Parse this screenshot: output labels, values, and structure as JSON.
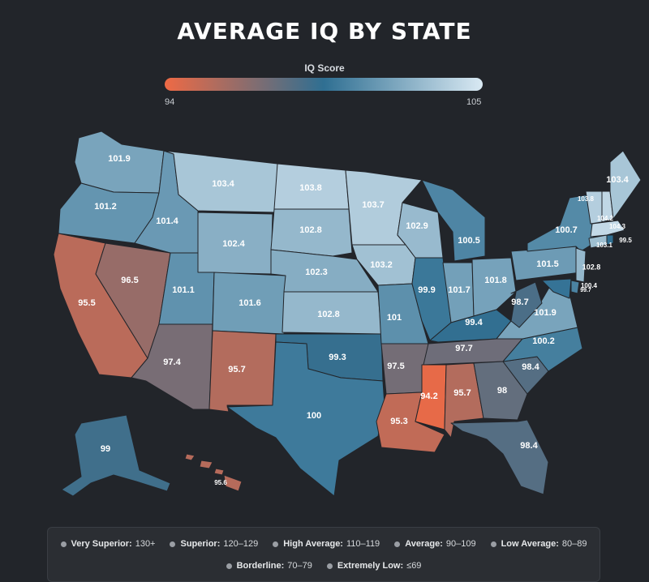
{
  "title": "AVERAGE IQ BY STATE",
  "legend": {
    "title": "IQ Score",
    "min_label": "94",
    "max_label": "105",
    "min": 94,
    "max": 105,
    "low_color": "#ee6a45",
    "mid_color": "#2f6f92",
    "high_color": "#d9e9f3"
  },
  "states": [
    {
      "id": "WA",
      "value": 101.9,
      "label": "101.9"
    },
    {
      "id": "OR",
      "value": 101.2,
      "label": "101.2"
    },
    {
      "id": "CA",
      "value": 95.5,
      "label": "95.5"
    },
    {
      "id": "NV",
      "value": 96.5,
      "label": "96.5"
    },
    {
      "id": "ID",
      "value": 101.4,
      "label": "101.4"
    },
    {
      "id": "MT",
      "value": 103.4,
      "label": "103.4"
    },
    {
      "id": "WY",
      "value": 102.4,
      "label": "102.4"
    },
    {
      "id": "UT",
      "value": 101.1,
      "label": "101.1"
    },
    {
      "id": "AZ",
      "value": 97.4,
      "label": "97.4"
    },
    {
      "id": "CO",
      "value": 101.6,
      "label": "101.6"
    },
    {
      "id": "NM",
      "value": 95.7,
      "label": "95.7"
    },
    {
      "id": "ND",
      "value": 103.8,
      "label": "103.8"
    },
    {
      "id": "SD",
      "value": 102.8,
      "label": "102.8"
    },
    {
      "id": "NE",
      "value": 102.3,
      "label": "102.3"
    },
    {
      "id": "KS",
      "value": 102.8,
      "label": "102.8"
    },
    {
      "id": "OK",
      "value": 99.3,
      "label": "99.3"
    },
    {
      "id": "TX",
      "value": 100,
      "label": "100"
    },
    {
      "id": "MN",
      "value": 103.7,
      "label": "103.7"
    },
    {
      "id": "IA",
      "value": 103.2,
      "label": "103.2"
    },
    {
      "id": "MO",
      "value": 101,
      "label": "101"
    },
    {
      "id": "AR",
      "value": 97.5,
      "label": "97.5"
    },
    {
      "id": "LA",
      "value": 95.3,
      "label": "95.3"
    },
    {
      "id": "WI",
      "value": 102.9,
      "label": "102.9"
    },
    {
      "id": "IL",
      "value": 99.9,
      "label": "99.9"
    },
    {
      "id": "MI",
      "value": 100.5,
      "label": "100.5"
    },
    {
      "id": "IN",
      "value": 101.7,
      "label": "101.7"
    },
    {
      "id": "OH",
      "value": 101.8,
      "label": "101.8"
    },
    {
      "id": "KY",
      "value": 99.4,
      "label": "99.4"
    },
    {
      "id": "TN",
      "value": 97.7,
      "label": "97.7"
    },
    {
      "id": "MS",
      "value": 94.2,
      "label": "94.2"
    },
    {
      "id": "AL",
      "value": 95.7,
      "label": "95.7"
    },
    {
      "id": "GA",
      "value": 98,
      "label": "98"
    },
    {
      "id": "FL",
      "value": 98.4,
      "label": "98.4"
    },
    {
      "id": "SC",
      "value": 98.4,
      "label": "98.4"
    },
    {
      "id": "NC",
      "value": 100.2,
      "label": "100.2"
    },
    {
      "id": "VA",
      "value": 101.9,
      "label": "101.9"
    },
    {
      "id": "WV",
      "value": 98.7,
      "label": "98.7"
    },
    {
      "id": "PA",
      "value": 101.5,
      "label": "101.5"
    },
    {
      "id": "NY",
      "value": 100.7,
      "label": "100.7"
    },
    {
      "id": "NJ",
      "value": 102.8,
      "label": "102.8"
    },
    {
      "id": "DE",
      "value": 100.4,
      "label": "100.4"
    },
    {
      "id": "MD",
      "value": 99.7,
      "label": "99.7"
    },
    {
      "id": "CT",
      "value": 103.1,
      "label": "103.1"
    },
    {
      "id": "RI",
      "value": 99.5,
      "label": "99.5"
    },
    {
      "id": "MA",
      "value": 104.3,
      "label": "104.3"
    },
    {
      "id": "NH",
      "value": 104.2,
      "label": "104.2"
    },
    {
      "id": "VT",
      "value": 103.8,
      "label": "103.8"
    },
    {
      "id": "ME",
      "value": 103.4,
      "label": "103.4"
    },
    {
      "id": "AK",
      "value": 99,
      "label": "99"
    },
    {
      "id": "HI",
      "value": 95.6,
      "label": "95.6"
    }
  ],
  "categories_row1": [
    {
      "name": "Very Superior:",
      "range": "130+"
    },
    {
      "name": "Superior:",
      "range": "120–129"
    },
    {
      "name": "High Average:",
      "range": "110–119"
    },
    {
      "name": "Average:",
      "range": "90–109"
    },
    {
      "name": "Low Average:",
      "range": "80–89"
    }
  ],
  "categories_row2": [
    {
      "name": "Borderline:",
      "range": "70–79"
    },
    {
      "name": "Extremely Low:",
      "range": "≤69"
    }
  ]
}
